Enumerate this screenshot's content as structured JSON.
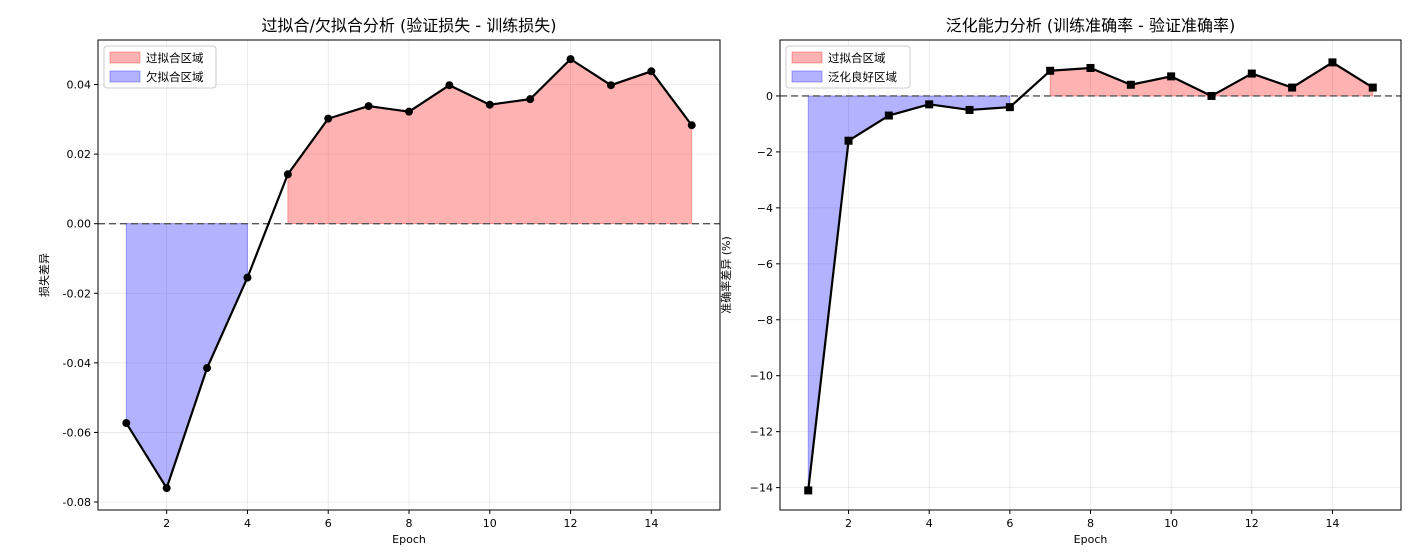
{
  "chart_data": [
    {
      "type": "line",
      "title": "过拟合/欠拟合分析 (验证损失 - 训练损失)",
      "xlabel": "Epoch",
      "ylabel": "损失差异",
      "xlim": [
        0.3,
        15.7
      ],
      "ylim": [
        -0.0823,
        0.0528
      ],
      "x_ticks": [
        2,
        4,
        6,
        8,
        10,
        12,
        14
      ],
      "y_ticks": [
        -0.08,
        -0.06,
        -0.04,
        -0.02,
        0.0,
        0.02,
        0.04
      ],
      "y_tick_labels": [
        "-0.08",
        "-0.06",
        "-0.04",
        "-0.02",
        "0.00",
        "0.02",
        "0.04"
      ],
      "x_tick_labels": [
        "2",
        "4",
        "6",
        "8",
        "10",
        "12",
        "14"
      ],
      "grid": true,
      "marker": "circle",
      "series": [
        {
          "x": [
            1,
            2,
            3,
            4,
            5,
            6,
            7,
            8,
            9,
            10,
            11,
            12,
            13,
            14,
            15
          ],
          "y": [
            -0.0573,
            -0.076,
            -0.0415,
            -0.0155,
            0.0142,
            0.0302,
            0.0338,
            0.0322,
            0.0398,
            0.0342,
            0.0358,
            0.0473,
            0.0398,
            0.0438,
            0.0283
          ],
          "color": "#000000"
        }
      ],
      "reference_line": 0,
      "fill_regions": [
        {
          "label": "过拟合区域",
          "color": "#ff0000",
          "alpha": 0.3,
          "x_start": 5,
          "x_end": 15,
          "mode": "series"
        },
        {
          "label": "欠拟合区域",
          "color": "#0000ff",
          "alpha": 0.3,
          "x_start": 1,
          "x_end": 4,
          "mode": "series"
        }
      ],
      "legend": {
        "placement": "top-left",
        "entries": [
          {
            "label": "过拟合区域",
            "color": "#ff0000"
          },
          {
            "label": "欠拟合区域",
            "color": "#0000ff"
          }
        ]
      }
    },
    {
      "type": "line",
      "title": "泛化能力分析 (训练准确率 - 验证准确率)",
      "xlabel": "Epoch",
      "ylabel": "准确率差异 (%)",
      "xlim": [
        0.3,
        15.7
      ],
      "ylim": [
        -14.8,
        2.0
      ],
      "x_ticks": [
        2,
        4,
        6,
        8,
        10,
        12,
        14
      ],
      "y_ticks": [
        -14,
        -12,
        -10,
        -8,
        -6,
        -4,
        -2,
        0
      ],
      "y_tick_labels": [
        "−14",
        "−12",
        "−10",
        "−8",
        "−6",
        "−4",
        "−2",
        "0"
      ],
      "x_tick_labels": [
        "2",
        "4",
        "6",
        "8",
        "10",
        "12",
        "14"
      ],
      "grid": true,
      "marker": "square",
      "series": [
        {
          "x": [
            1,
            2,
            3,
            4,
            5,
            6,
            7,
            8,
            9,
            10,
            11,
            12,
            13,
            14,
            15
          ],
          "y": [
            -14.1,
            -1.6,
            -0.7,
            -0.3,
            -0.5,
            -0.4,
            0.9,
            1.0,
            0.4,
            0.7,
            0.0,
            0.8,
            0.3,
            1.2,
            0.3
          ],
          "color": "#000000"
        }
      ],
      "reference_line": 0,
      "fill_regions": [
        {
          "label": "过拟合区域",
          "color": "#ff0000",
          "alpha": 0.3,
          "x_start": 7,
          "x_end": 15,
          "mode": "series"
        },
        {
          "label": "泛化良好区域",
          "color": "#0000ff",
          "alpha": 0.3,
          "x_start": 1,
          "x_end": 6,
          "mode": "box"
        }
      ],
      "legend": {
        "placement": "top-left",
        "entries": [
          {
            "label": "过拟合区域",
            "color": "#ff0000"
          },
          {
            "label": "泛化良好区域",
            "color": "#0000ff"
          }
        ]
      }
    }
  ]
}
